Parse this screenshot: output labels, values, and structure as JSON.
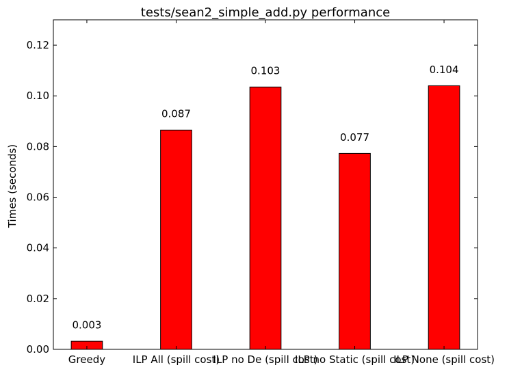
{
  "chart_data": {
    "type": "bar",
    "title": "tests/sean2_simple_add.py performance",
    "xlabel": "",
    "ylabel": "Times (seconds)",
    "categories": [
      "Greedy",
      "ILP All (spill cost)",
      "ILP no De (spill cost)",
      "ILP no Static (spill cost)",
      "ILP None (spill cost)"
    ],
    "values": [
      0.0032,
      0.0865,
      0.1035,
      0.0773,
      0.104
    ],
    "data_labels": [
      "0.003",
      "0.087",
      "0.103",
      "0.077",
      "0.104"
    ],
    "ylim": [
      0,
      0.13
    ],
    "yticks": [
      0.0,
      0.02,
      0.04,
      0.06,
      0.08,
      0.1,
      0.12
    ],
    "ytick_labels": [
      "0.00",
      "0.02",
      "0.04",
      "0.06",
      "0.08",
      "0.10",
      "0.12"
    ],
    "bar_color": "#ff0000",
    "grid": false
  }
}
